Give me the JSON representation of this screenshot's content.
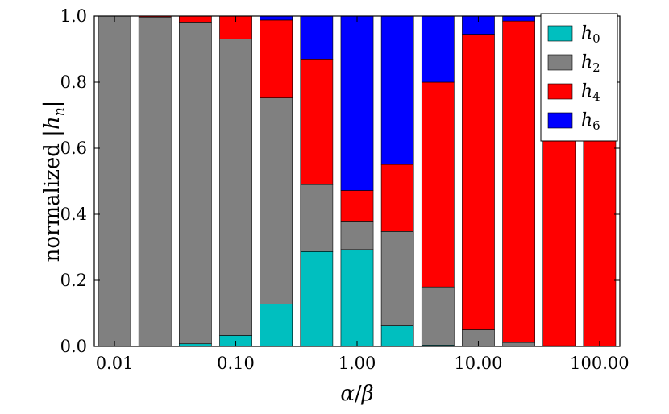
{
  "chart_data": {
    "type": "bar",
    "stacked": true,
    "categories": [
      "0.01",
      "0.02",
      "0.05",
      "0.10",
      "0.20",
      "0.50",
      "1.00",
      "2.00",
      "5.00",
      "10.00",
      "20.00",
      "50.00",
      "100.00"
    ],
    "x_ticks": [
      "0.01",
      "0.10",
      "1.00",
      "10.00",
      "100.00"
    ],
    "xscale": "log",
    "ylim": [
      0,
      1
    ],
    "y_ticks": [
      "0.0",
      "0.2",
      "0.4",
      "0.6",
      "0.8",
      "1.0"
    ],
    "xlabel_parts": {
      "a": "α",
      "slash": "/",
      "b": "β"
    },
    "ylabel_parts": {
      "prefix": "normalized |",
      "var": "h",
      "sub": "n",
      "suffix": "|"
    },
    "legend_position": "top-right",
    "grid": false,
    "series": [
      {
        "name": "h0",
        "label": {
          "var": "h",
          "sub": "0"
        },
        "color": "#00bfbf",
        "values": [
          0.0,
          0.0,
          0.008,
          0.033,
          0.128,
          0.287,
          0.293,
          0.062,
          0.004,
          0.0,
          0.0,
          0.0,
          0.0
        ]
      },
      {
        "name": "h2",
        "label": {
          "var": "h",
          "sub": "2"
        },
        "color": "#808080",
        "values": [
          1.0,
          0.997,
          0.974,
          0.898,
          0.624,
          0.203,
          0.084,
          0.286,
          0.176,
          0.05,
          0.012,
          0.002,
          0.0
        ]
      },
      {
        "name": "h4",
        "label": {
          "var": "h",
          "sub": "4"
        },
        "color": "#ff0000",
        "values": [
          0.0,
          0.003,
          0.018,
          0.069,
          0.236,
          0.38,
          0.095,
          0.203,
          0.62,
          0.895,
          0.973,
          0.998,
          1.0
        ]
      },
      {
        "name": "h6",
        "label": {
          "var": "h",
          "sub": "6"
        },
        "color": "#0000ff",
        "values": [
          0.0,
          0.0,
          0.0,
          0.0,
          0.012,
          0.13,
          0.528,
          0.449,
          0.2,
          0.055,
          0.015,
          0.0,
          0.0
        ]
      }
    ]
  }
}
